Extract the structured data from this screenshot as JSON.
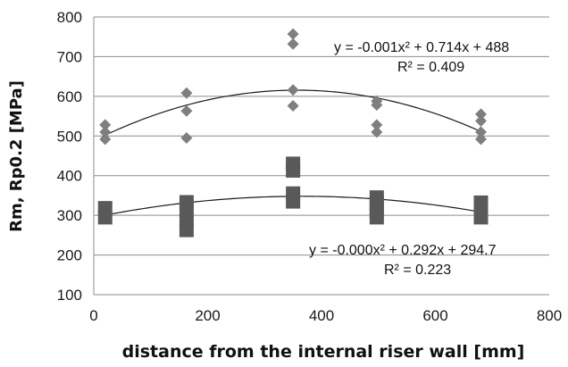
{
  "chart_data": {
    "type": "scatter",
    "title": "",
    "xlabel": "distance from the internal riser wall [mm]",
    "ylabel": "Rm, Rp0.2 [MPa]",
    "xlim": [
      0,
      800
    ],
    "ylim": [
      100,
      800
    ],
    "x_ticks": [
      "0",
      "200",
      "400",
      "600",
      "800"
    ],
    "y_ticks": [
      "100",
      "200",
      "300",
      "400",
      "500",
      "600",
      "700",
      "800"
    ],
    "grid": "horizontal",
    "legend": "none",
    "series": [
      {
        "marker": "diamond",
        "color": "#7f7f7f",
        "points": [
          [
            20,
            528
          ],
          [
            20,
            510
          ],
          [
            20,
            492
          ],
          [
            163,
            608
          ],
          [
            163,
            563
          ],
          [
            163,
            495
          ],
          [
            350,
            757
          ],
          [
            350,
            732
          ],
          [
            350,
            616
          ],
          [
            350,
            576
          ],
          [
            497,
            588
          ],
          [
            497,
            578
          ],
          [
            497,
            528
          ],
          [
            497,
            510
          ],
          [
            680,
            555
          ],
          [
            680,
            538
          ],
          [
            680,
            510
          ],
          [
            680,
            492
          ]
        ],
        "trendline": {
          "type": "polynomial",
          "coefficients": [
            -0.001,
            0.714,
            488
          ],
          "x_range": [
            20,
            680
          ],
          "equation": "y = -0.001x² + 0.714x + 488",
          "r2": "R² = 0.409"
        }
      },
      {
        "marker": "square",
        "color": "#595959",
        "points": [
          [
            20,
            318
          ],
          [
            20,
            295
          ],
          [
            163,
            333
          ],
          [
            163,
            312
          ],
          [
            163,
            285
          ],
          [
            163,
            263
          ],
          [
            350,
            430
          ],
          [
            350,
            413
          ],
          [
            350,
            355
          ],
          [
            350,
            335
          ],
          [
            497,
            345
          ],
          [
            497,
            330
          ],
          [
            497,
            312
          ],
          [
            497,
            295
          ],
          [
            680,
            332
          ],
          [
            680,
            312
          ],
          [
            680,
            295
          ]
        ],
        "trendline": {
          "type": "polynomial",
          "coefficients": [
            -0.0004,
            0.292,
            294.7
          ],
          "x_range": [
            20,
            680
          ],
          "equation": "y = -0.000x² + 0.292x + 294.7",
          "r2": "R² = 0.223"
        }
      }
    ]
  }
}
